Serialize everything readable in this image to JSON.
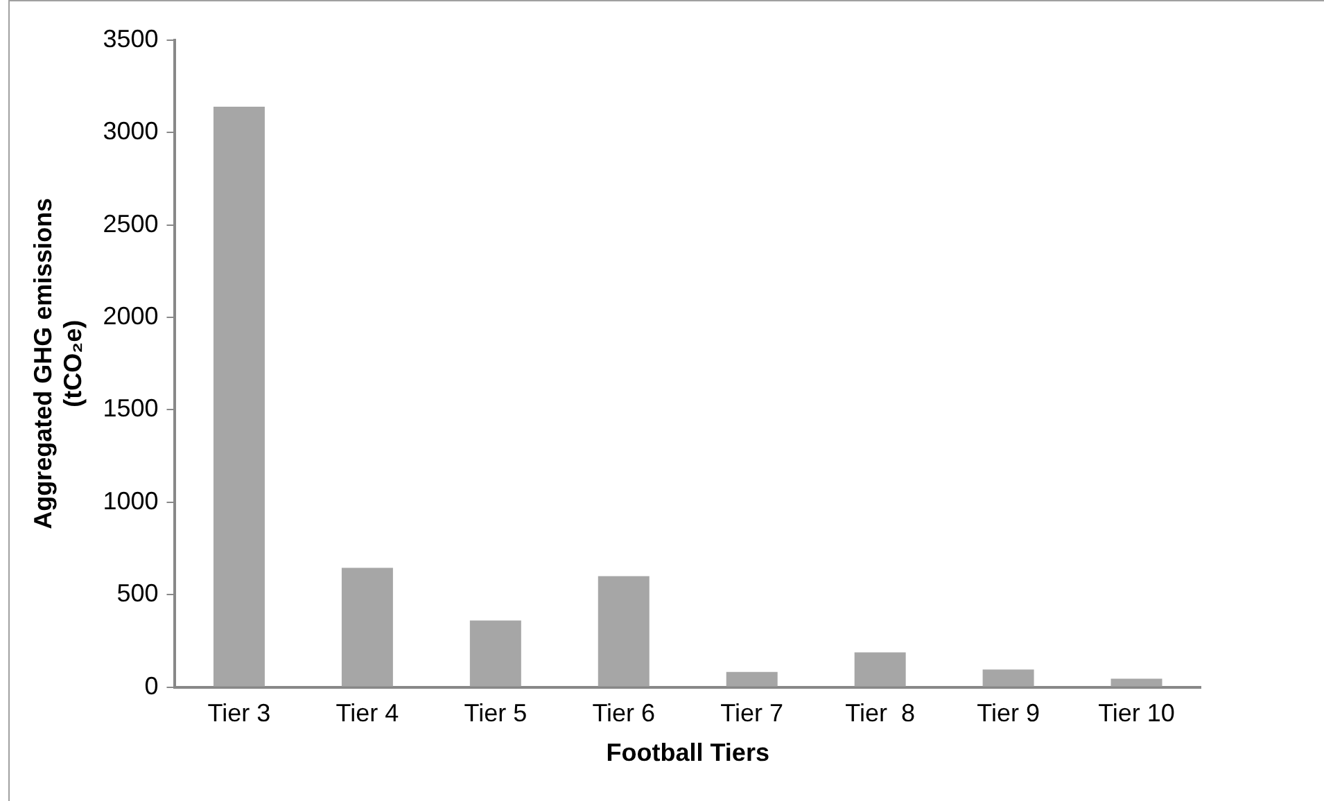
{
  "chart_data": {
    "type": "bar",
    "xlabel": "Football Tiers",
    "ylabel": "Aggregated GHG emissions\n(tCO₂e)",
    "categories": [
      "Tier 3",
      "Tier 4",
      "Tier 5",
      "Tier 6",
      "Tier 7",
      "Tier  8",
      "Tier 9",
      "Tier 10"
    ],
    "values": [
      3140,
      645,
      360,
      600,
      82,
      188,
      95,
      45
    ],
    "color": "#a6a6a6",
    "ylim": [
      0,
      3500
    ],
    "yticks": [
      0,
      500,
      1000,
      1500,
      2000,
      2500,
      3000,
      3500
    ],
    "grid": false,
    "legend": false
  }
}
